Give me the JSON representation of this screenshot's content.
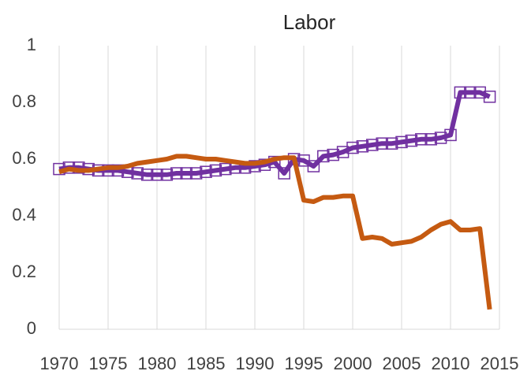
{
  "chart_data": {
    "type": "line",
    "title": "Labor",
    "x": [
      1970,
      1971,
      1972,
      1973,
      1974,
      1975,
      1976,
      1977,
      1978,
      1979,
      1980,
      1981,
      1982,
      1983,
      1984,
      1985,
      1986,
      1987,
      1988,
      1989,
      1990,
      1991,
      1992,
      1993,
      1994,
      1995,
      1996,
      1997,
      1998,
      1999,
      2000,
      2001,
      2002,
      2003,
      2004,
      2005,
      2006,
      2007,
      2008,
      2009,
      2010,
      2011,
      2012,
      2013,
      2014
    ],
    "series": [
      {
        "color": "#7030a0",
        "marker": "square",
        "values": [
          0.565,
          0.57,
          0.57,
          0.565,
          0.56,
          0.56,
          0.56,
          0.555,
          0.55,
          0.545,
          0.545,
          0.545,
          0.55,
          0.55,
          0.55,
          0.555,
          0.56,
          0.565,
          0.57,
          0.57,
          0.575,
          0.58,
          0.59,
          0.55,
          0.6,
          0.595,
          0.575,
          0.61,
          0.615,
          0.625,
          0.64,
          0.645,
          0.65,
          0.655,
          0.655,
          0.66,
          0.665,
          0.67,
          0.67,
          0.675,
          0.685,
          0.835,
          0.835,
          0.835,
          0.82
        ]
      },
      {
        "color": "#c55a11",
        "values": [
          0.555,
          0.565,
          0.56,
          0.56,
          0.565,
          0.57,
          0.57,
          0.575,
          0.585,
          0.59,
          0.595,
          0.6,
          0.61,
          0.61,
          0.605,
          0.6,
          0.6,
          0.595,
          0.59,
          0.585,
          0.585,
          0.59,
          0.6,
          0.605,
          0.605,
          0.455,
          0.45,
          0.465,
          0.465,
          0.47,
          0.47,
          0.32,
          0.325,
          0.32,
          0.3,
          0.305,
          0.31,
          0.325,
          0.35,
          0.37,
          0.38,
          0.35,
          0.35,
          0.355,
          0.07
        ]
      }
    ],
    "xlim": [
      1970,
      2015
    ],
    "xticks": [
      1970,
      1975,
      1980,
      1985,
      1990,
      1995,
      2000,
      2005,
      2010,
      2015
    ],
    "ylim": [
      0,
      1
    ],
    "yticks": [
      0,
      0.2,
      0.4,
      0.6,
      0.8,
      1
    ],
    "grid": "x"
  }
}
